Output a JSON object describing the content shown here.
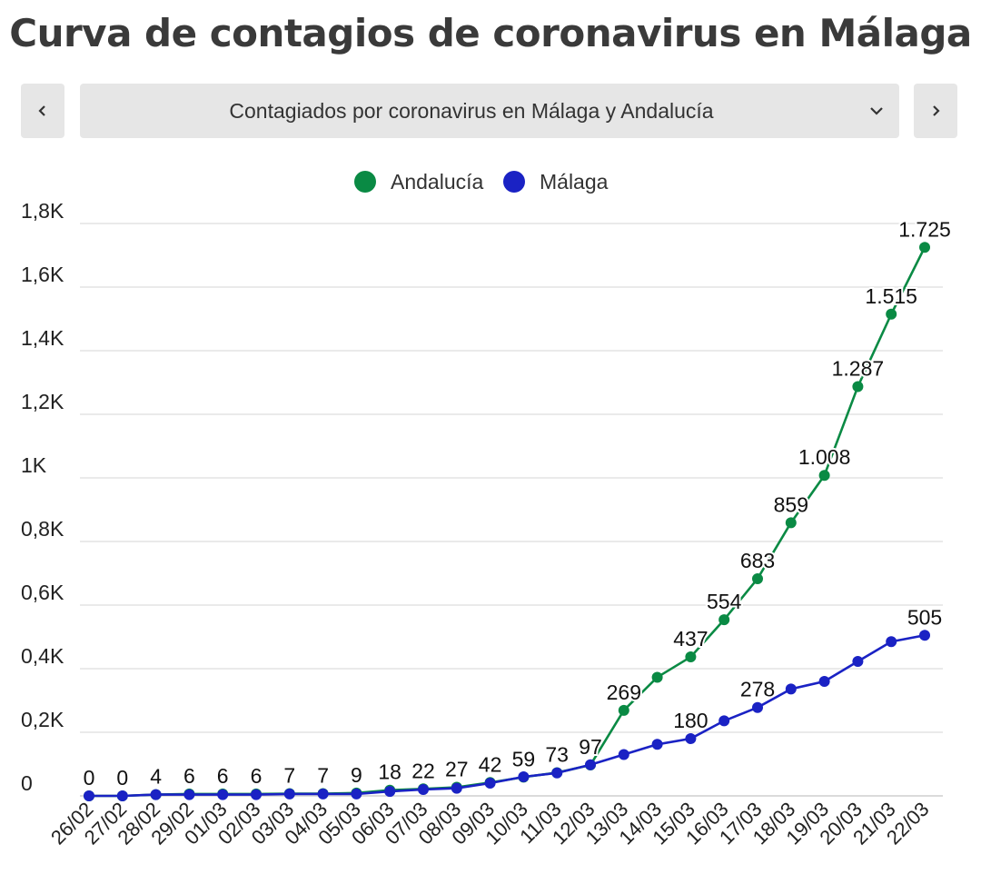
{
  "header": {
    "title": "Curva de contagios de coronavirus en Málaga"
  },
  "selector": {
    "label": "Contagiados por coronavirus en Málaga y Andalucía",
    "prev_icon": "chevron-left-icon",
    "next_icon": "chevron-right-icon",
    "dropdown_icon": "chevron-down-icon"
  },
  "chart_data": {
    "type": "line",
    "title": "",
    "xlabel": "",
    "ylabel": "",
    "ylim": [
      0,
      1800
    ],
    "yticks": [
      0,
      200,
      400,
      600,
      800,
      1000,
      1200,
      1400,
      1600,
      1800
    ],
    "ytick_labels": [
      "0",
      "0,2K",
      "0,4K",
      "0,6K",
      "0,8K",
      "1K",
      "1,2K",
      "1,4K",
      "1,6K",
      "1,8K"
    ],
    "grid": true,
    "legend_position": "top",
    "categories": [
      "26/02",
      "27/02",
      "28/02",
      "29/02",
      "01/03",
      "02/03",
      "03/03",
      "04/03",
      "05/03",
      "06/03",
      "07/03",
      "08/03",
      "09/03",
      "10/03",
      "11/03",
      "12/03",
      "13/03",
      "14/03",
      "15/03",
      "16/03",
      "17/03",
      "18/03",
      "19/03",
      "20/03",
      "21/03",
      "22/03"
    ],
    "series": [
      {
        "name": "Andalucía",
        "color": "#0a8a44",
        "values": [
          0,
          0,
          4,
          6,
          6,
          6,
          7,
          7,
          9,
          18,
          22,
          27,
          42,
          59,
          73,
          97,
          269,
          373,
          437,
          554,
          683,
          859,
          1008,
          1287,
          1515,
          1725
        ]
      },
      {
        "name": "Málaga",
        "color": "#1a22c4",
        "values": [
          0,
          0,
          4,
          4,
          4,
          4,
          6,
          6,
          6,
          14,
          20,
          24,
          40,
          60,
          72,
          98,
          130,
          162,
          180,
          236,
          278,
          336,
          360,
          423,
          485,
          505
        ]
      }
    ],
    "data_labels": [
      {
        "index": 0,
        "text": "0",
        "series": 0
      },
      {
        "index": 1,
        "text": "0",
        "series": 0
      },
      {
        "index": 2,
        "text": "4",
        "series": 0
      },
      {
        "index": 3,
        "text": "6",
        "series": 0
      },
      {
        "index": 4,
        "text": "6",
        "series": 0
      },
      {
        "index": 5,
        "text": "6",
        "series": 0
      },
      {
        "index": 6,
        "text": "7",
        "series": 0
      },
      {
        "index": 7,
        "text": "7",
        "series": 0
      },
      {
        "index": 8,
        "text": "9",
        "series": 0
      },
      {
        "index": 9,
        "text": "18",
        "series": 0
      },
      {
        "index": 10,
        "text": "22",
        "series": 0
      },
      {
        "index": 11,
        "text": "27",
        "series": 0
      },
      {
        "index": 12,
        "text": "42",
        "series": 0
      },
      {
        "index": 13,
        "text": "59",
        "series": 0
      },
      {
        "index": 14,
        "text": "73",
        "series": 0
      },
      {
        "index": 15,
        "text": "97",
        "series": 0
      },
      {
        "index": 16,
        "text": "269",
        "series": 0
      },
      {
        "index": 18,
        "text": "437",
        "series": 0
      },
      {
        "index": 19,
        "text": "554",
        "series": 0
      },
      {
        "index": 20,
        "text": "683",
        "series": 0
      },
      {
        "index": 21,
        "text": "859",
        "series": 0
      },
      {
        "index": 22,
        "text": "1.008",
        "series": 0
      },
      {
        "index": 23,
        "text": "1.287",
        "series": 0
      },
      {
        "index": 24,
        "text": "1.515",
        "series": 0
      },
      {
        "index": 25,
        "text": "1.725",
        "series": 0
      },
      {
        "index": 18,
        "text": "180",
        "series": 1
      },
      {
        "index": 20,
        "text": "278",
        "series": 1
      },
      {
        "index": 25,
        "text": "505",
        "series": 1
      }
    ]
  }
}
